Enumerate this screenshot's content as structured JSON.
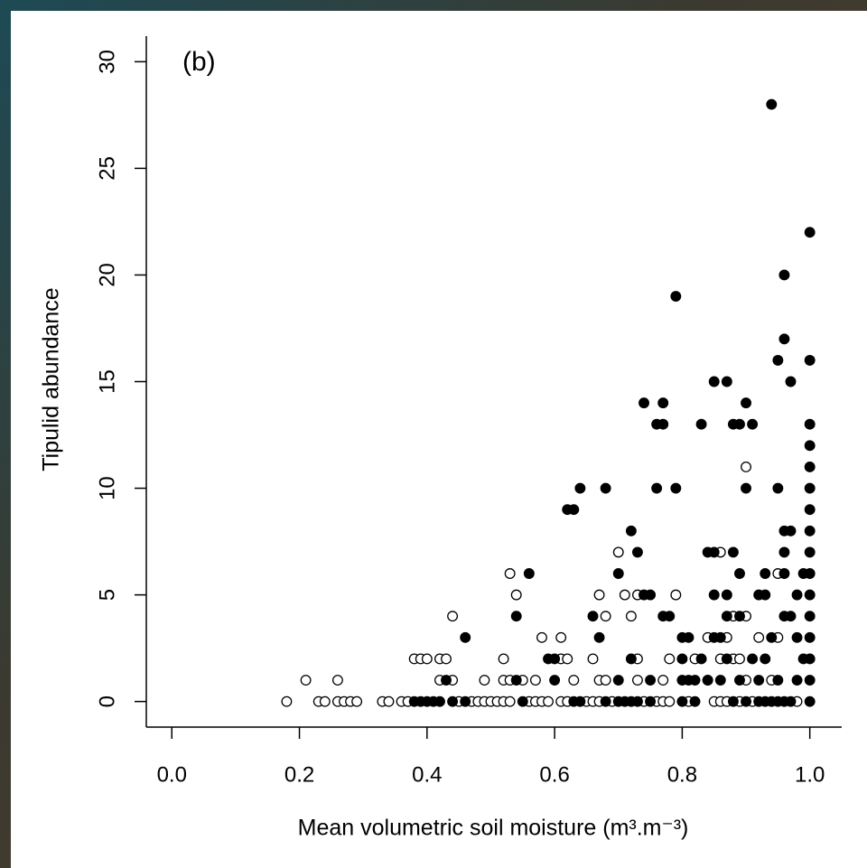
{
  "chart_data": {
    "type": "scatter",
    "annotation": "(b)",
    "x_label": "Mean volumetric soil moisture (m³.m⁻³)",
    "y_label": "Tipulid abundance",
    "xlim": [
      -0.04,
      1.05
    ],
    "ylim": [
      -1.2,
      31.2
    ],
    "xticks": [
      {
        "value": 0,
        "label": "0.0"
      },
      0.2,
      0.4,
      0.6,
      0.8,
      {
        "value": 1,
        "label": "1.0"
      }
    ],
    "yticks": [
      0,
      5,
      10,
      15,
      20,
      25,
      30
    ],
    "series": [
      {
        "color": "#000000",
        "filled": false,
        "x": [
          0.9,
          0.7,
          0.86,
          0.53,
          0.95,
          0.54,
          0.67,
          0.71,
          0.73,
          0.79,
          0.44,
          0.68,
          0.72,
          0.88,
          0.9,
          0.38,
          0.39,
          0.4,
          0.42,
          0.43,
          0.52,
          0.61,
          0.62,
          0.66,
          0.73,
          0.78,
          0.82,
          0.86,
          0.88,
          0.89,
          0.58,
          0.61,
          0.84,
          0.87,
          0.92,
          0.95,
          0.21,
          0.26,
          0.42,
          0.44,
          0.49,
          0.52,
          0.53,
          0.55,
          0.57,
          0.63,
          0.67,
          0.68,
          0.73,
          0.77,
          0.84,
          0.9,
          0.94,
          0.18,
          0.23,
          0.24,
          0.26,
          0.27,
          0.28,
          0.29,
          0.33,
          0.34,
          0.36,
          0.37,
          0.45,
          0.47,
          0.48,
          0.49,
          0.5,
          0.51,
          0.52,
          0.53,
          0.56,
          0.57,
          0.58,
          0.59,
          0.61,
          0.62,
          0.65,
          0.66,
          0.67,
          0.69,
          0.74,
          0.76,
          0.77,
          0.78,
          0.81,
          0.85,
          0.86,
          0.87,
          0.89,
          0.91,
          0.98
        ],
        "y": [
          11,
          7,
          7,
          6,
          6,
          5,
          5,
          5,
          5,
          5,
          4,
          4,
          4,
          4,
          4,
          2,
          2,
          2,
          2,
          2,
          2,
          2,
          2,
          2,
          2,
          2,
          2,
          2,
          2,
          2,
          3,
          3,
          3,
          3,
          3,
          3,
          1,
          1,
          1,
          1,
          1,
          1,
          1,
          1,
          1,
          1,
          1,
          1,
          1,
          1,
          1,
          1,
          1,
          0,
          0,
          0,
          0,
          0,
          0,
          0,
          0,
          0,
          0,
          0,
          0,
          0,
          0,
          0,
          0,
          0,
          0,
          0,
          0,
          0,
          0,
          0,
          0,
          0,
          0,
          0,
          0,
          0,
          0,
          0,
          0,
          0,
          0,
          0,
          0,
          0,
          0,
          0,
          0
        ]
      },
      {
        "color": "#000000",
        "filled": true,
        "x": [
          0.94,
          1.0,
          0.96,
          0.79,
          0.96,
          0.95,
          1.0,
          0.97,
          0.85,
          0.87,
          0.74,
          0.77,
          0.9,
          0.76,
          0.77,
          0.83,
          0.88,
          0.89,
          0.91,
          1.0,
          1.0,
          1.0,
          0.62,
          0.63,
          0.64,
          0.68,
          0.76,
          0.79,
          0.9,
          0.95,
          1.0,
          1.0,
          0.72,
          0.96,
          0.97,
          1.0,
          0.73,
          0.84,
          0.85,
          0.88,
          0.96,
          1.0,
          0.56,
          0.7,
          0.89,
          0.93,
          0.96,
          0.99,
          1.0,
          0.74,
          0.75,
          0.85,
          0.87,
          0.92,
          0.93,
          0.98,
          1.0,
          0.54,
          0.66,
          0.77,
          0.78,
          0.87,
          0.89,
          0.96,
          0.97,
          1.0,
          0.46,
          0.67,
          0.8,
          0.81,
          0.85,
          0.86,
          0.94,
          0.98,
          1.0,
          0.59,
          0.6,
          0.72,
          0.8,
          0.83,
          0.87,
          0.91,
          0.93,
          0.99,
          1.0,
          0.43,
          0.54,
          0.6,
          0.7,
          0.75,
          0.8,
          0.81,
          0.82,
          0.84,
          0.86,
          0.89,
          0.92,
          0.95,
          0.98,
          1.0,
          0.38,
          0.39,
          0.4,
          0.41,
          0.42,
          0.44,
          0.46,
          0.55,
          0.63,
          0.64,
          0.68,
          0.7,
          0.71,
          0.72,
          0.73,
          0.75,
          0.8,
          0.82,
          0.88,
          0.9,
          0.92,
          0.93,
          0.94,
          0.95,
          0.96,
          0.97,
          1.0
        ],
        "y": [
          28,
          22,
          20,
          19,
          17,
          16,
          16,
          15,
          15,
          15,
          14,
          14,
          14,
          13,
          13,
          13,
          13,
          13,
          13,
          13,
          12,
          11,
          9,
          9,
          10,
          10,
          10,
          10,
          10,
          10,
          10,
          9,
          8,
          8,
          8,
          8,
          7,
          7,
          7,
          7,
          7,
          7,
          6,
          6,
          6,
          6,
          6,
          6,
          6,
          5,
          5,
          5,
          5,
          5,
          5,
          5,
          5,
          4,
          4,
          4,
          4,
          4,
          4,
          4,
          4,
          4,
          3,
          3,
          3,
          3,
          3,
          3,
          3,
          3,
          3,
          2,
          2,
          2,
          2,
          2,
          2,
          2,
          2,
          2,
          2,
          1,
          1,
          1,
          1,
          1,
          1,
          1,
          1,
          1,
          1,
          1,
          1,
          1,
          1,
          1,
          0,
          0,
          0,
          0,
          0,
          0,
          0,
          0,
          0,
          0,
          0,
          0,
          0,
          0,
          0,
          0,
          0,
          0,
          0,
          0,
          0,
          0,
          0,
          0,
          0,
          0,
          0
        ]
      }
    ]
  }
}
